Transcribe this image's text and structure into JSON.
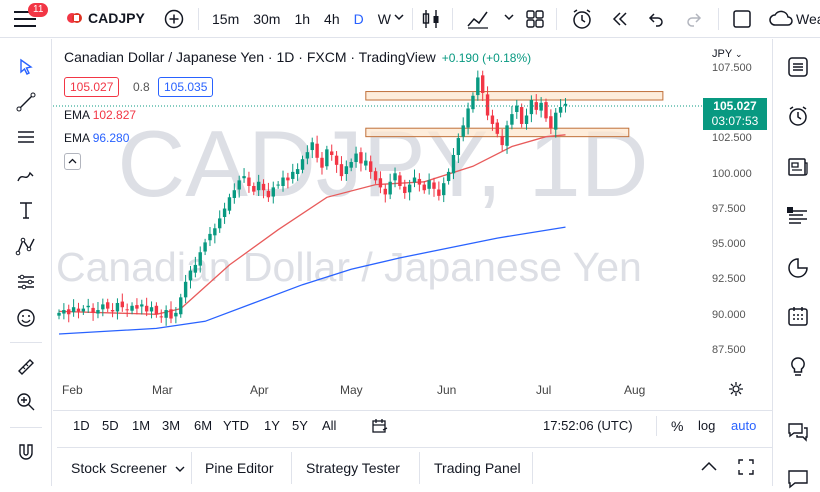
{
  "header": {
    "notification_count": "11",
    "symbol": "CADJPY",
    "intervals": [
      "15m",
      "30m",
      "1h",
      "4h",
      "D",
      "W"
    ],
    "active_interval": "D",
    "right_label": "Wea"
  },
  "legend": {
    "title": "Canadian Dollar / Japanese Yen · 1D · FXCM · TradingView",
    "change": "+0.190 (+0.18%)",
    "bid": "105.027",
    "spread": "0.8",
    "ask": "105.035",
    "ema1_label": "EMA",
    "ema1_value": "102.827",
    "ema2_label": "EMA",
    "ema2_value": "96.280"
  },
  "watermark": {
    "symbol": "CADJPY, 1D",
    "name": "Canadian Dollar / Japanese Yen"
  },
  "price_axis": {
    "currency": "JPY",
    "ticks": [
      "107.500",
      "105.000",
      "102.500",
      "100.000",
      "97.500",
      "95.000",
      "92.500",
      "90.000",
      "87.500"
    ],
    "current_price": "105.027",
    "countdown": "03:07:53"
  },
  "time_axis": [
    "Feb",
    "Mar",
    "Apr",
    "May",
    "Jun",
    "Jul",
    "Aug"
  ],
  "range_bar": {
    "ranges": [
      "1D",
      "5D",
      "1M",
      "3M",
      "6M",
      "YTD",
      "1Y",
      "5Y",
      "All"
    ],
    "clock": "17:52:06 (UTC)",
    "percent": "%",
    "log": "log",
    "auto": "auto"
  },
  "panels": [
    "Stock Screener",
    "Pine Editor",
    "Strategy Tester",
    "Trading Panel"
  ],
  "colors": {
    "up": "#089981",
    "down": "#f23645",
    "ema_fast": "#e85b5b",
    "ema_slow": "#2962ff",
    "zone_fill": "#fde7cf",
    "zone_stroke": "#c0703a",
    "accent": "#2962ff"
  },
  "icons": {
    "left": [
      "cursor-icon",
      "trendline-icon",
      "brush-icon",
      "text-icon",
      "pattern-icon",
      "measure-icon",
      "emoji-icon",
      "ruler-icon",
      "zoom-icon",
      "magnet-icon"
    ],
    "right": [
      "watchlist-icon",
      "alert-clock-icon",
      "news-icon",
      "ideas-icon",
      "hotlist-icon",
      "calendar-icon",
      "lightbulb-icon",
      "chat-icon",
      "comments-icon"
    ]
  },
  "chart_data": {
    "type": "candlestick",
    "symbol": "CADJPY",
    "timeframe": "1D",
    "x": [
      "Feb",
      "Mar",
      "Apr",
      "May",
      "Jun",
      "Jul",
      "Aug"
    ],
    "ylim": [
      86.8,
      108.2
    ],
    "close_series": [
      90.2,
      90.4,
      90.1,
      90.6,
      90.3,
      90.5,
      90.7,
      90.2,
      90.4,
      90.8,
      90.5,
      90.3,
      90.9,
      90.6,
      90.4,
      90.7,
      90.5,
      90.8,
      90.3,
      90.6,
      90.1,
      89.9,
      90.4,
      89.8,
      90.2,
      91.3,
      92.4,
      93.2,
      93.6,
      94.5,
      95.2,
      95.8,
      96.2,
      96.9,
      97.6,
      98.4,
      98.9,
      99.6,
      99.9,
      99.2,
      98.8,
      99.5,
      98.9,
      98.4,
      99.1,
      99.3,
      99.8,
      99.6,
      100.2,
      100.4,
      101.1,
      101.6,
      102.3,
      101.2,
      100.5,
      101.8,
      101.4,
      100.7,
      99.9,
      100.6,
      100.9,
      101.5,
      100.8,
      101.0,
      100.2,
      99.6,
      99.1,
      98.6,
      99.5,
      100.1,
      99.2,
      98.7,
      99.3,
      99.8,
      99.3,
      98.9,
      99.6,
      99.0,
      98.5,
      99.4,
      100.2,
      101.4,
      102.6,
      103.5,
      104.7,
      105.6,
      106.9,
      105.8,
      104.2,
      103.6,
      102.9,
      102.1,
      103.5,
      104.3,
      104.9,
      103.6,
      104.2,
      105.3,
      104.6,
      105.1,
      104.0,
      103.3,
      104.4,
      104.8,
      105.03
    ],
    "ema_fast": {
      "name": "EMA",
      "last": 102.827,
      "points": [
        [
          0,
          90.3
        ],
        [
          10,
          90.2
        ],
        [
          20,
          90.1
        ],
        [
          25,
          90.5
        ],
        [
          35,
          93.6
        ],
        [
          45,
          96.1
        ],
        [
          55,
          98.4
        ],
        [
          65,
          99.3
        ],
        [
          75,
          99.5
        ],
        [
          85,
          100.6
        ],
        [
          93,
          102.0
        ],
        [
          100,
          102.7
        ],
        [
          104,
          102.83
        ]
      ]
    },
    "ema_slow": {
      "name": "EMA",
      "last": 96.28,
      "points": [
        [
          0,
          88.7
        ],
        [
          20,
          89.1
        ],
        [
          30,
          89.6
        ],
        [
          40,
          90.9
        ],
        [
          50,
          92.2
        ],
        [
          60,
          93.3
        ],
        [
          70,
          94.1
        ],
        [
          80,
          94.8
        ],
        [
          90,
          95.5
        ],
        [
          104,
          96.28
        ]
      ]
    },
    "zones": [
      {
        "low": 105.3,
        "high": 105.9,
        "from_bar": 63,
        "to_bar": 124
      },
      {
        "low": 102.7,
        "high": 103.3,
        "from_bar": 63,
        "to_bar": 117
      }
    ]
  }
}
